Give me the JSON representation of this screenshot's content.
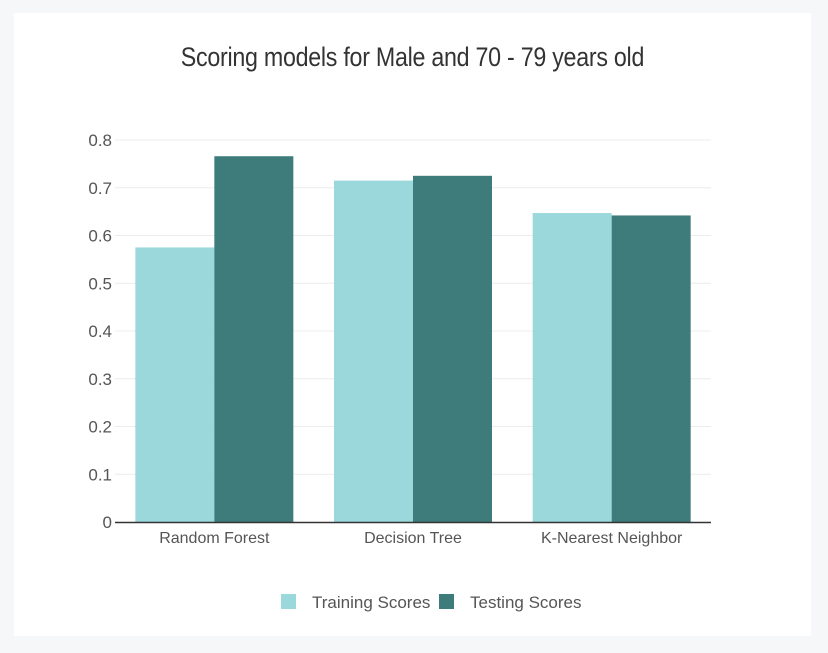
{
  "chart_data": {
    "type": "bar",
    "title": "Scoring models for Male and 70 - 79 years old",
    "categories": [
      "Random Forest",
      "Decision Tree",
      "K-Nearest Neighbor"
    ],
    "series": [
      {
        "name": "Training Scores",
        "values": [
          0.575,
          0.715,
          0.647
        ],
        "color": "#9ad8db"
      },
      {
        "name": "Testing Scores",
        "values": [
          0.766,
          0.725,
          0.642
        ],
        "color": "#3e7b7b"
      }
    ],
    "ylim": [
      0,
      0.8
    ],
    "yticks": [
      "0",
      "0.1",
      "0.2",
      "0.3",
      "0.4",
      "0.5",
      "0.6",
      "0.7",
      "0.8"
    ],
    "xlabel": "",
    "ylabel": "",
    "grid": true,
    "legend": "bottom-center"
  }
}
